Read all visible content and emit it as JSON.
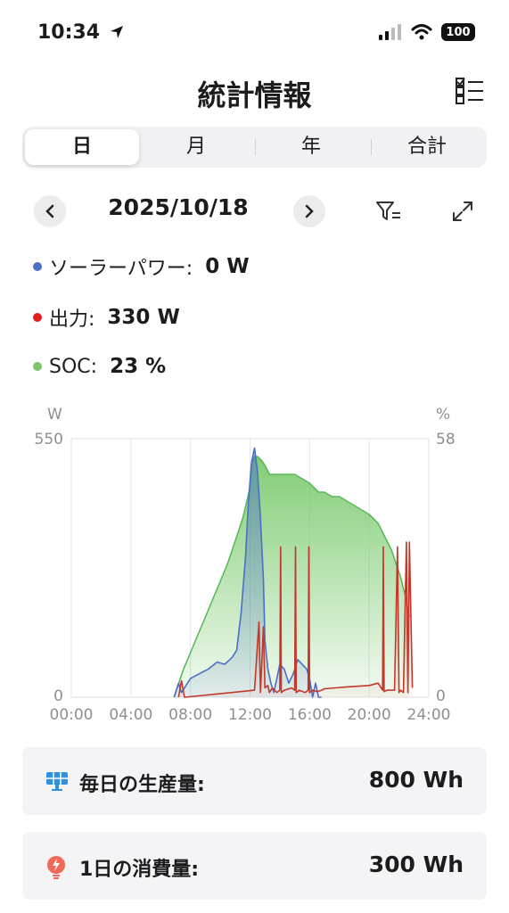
{
  "status": {
    "time": "10:34",
    "battery": "100"
  },
  "header": {
    "title": "統計情報"
  },
  "tabs": [
    {
      "label": "日",
      "active": true
    },
    {
      "label": "月",
      "active": false
    },
    {
      "label": "年",
      "active": false
    },
    {
      "label": "合計",
      "active": false
    }
  ],
  "date": "2025/10/18",
  "readouts": {
    "solar": {
      "label": "ソーラーパワー:",
      "value": "0 W",
      "color": "#4a6fc4"
    },
    "output": {
      "label": "出力:",
      "value": "330 W",
      "color": "#e02020"
    },
    "soc": {
      "label": "SOC:",
      "value": "23 %",
      "color": "#7cc46a"
    }
  },
  "chart_data": {
    "type": "area",
    "left_unit": "W",
    "right_unit": "%",
    "y_left": {
      "min": 0,
      "max": 550,
      "tick_labels": [
        "550",
        "0"
      ]
    },
    "y_right": {
      "min": 0,
      "max": 58,
      "tick_labels": [
        "58",
        "0"
      ]
    },
    "x_ticks": [
      "00:00",
      "04:00",
      "08:00",
      "12:00",
      "16:00",
      "20:00",
      "24:00"
    ],
    "grid": true,
    "series": [
      {
        "axis": "left",
        "color": "#4a6fc4",
        "x": [
          6.9,
          7.2,
          7.4,
          8.0,
          8.6,
          9.2,
          9.8,
          10.3,
          10.8,
          11.1,
          11.4,
          11.7,
          11.9,
          12.1,
          12.3,
          12.5,
          12.7,
          12.9,
          13.0,
          13.2,
          13.4,
          13.6,
          13.8,
          14.0,
          14.3,
          14.6,
          14.9,
          15.2,
          15.5,
          15.8,
          16.0,
          16.2,
          16.4,
          16.6,
          16.8
        ],
        "y": [
          0,
          30,
          10,
          40,
          50,
          60,
          75,
          70,
          85,
          100,
          180,
          300,
          420,
          500,
          530,
          480,
          380,
          250,
          120,
          60,
          30,
          10,
          40,
          70,
          60,
          30,
          50,
          80,
          70,
          60,
          40,
          0,
          30,
          0,
          0
        ]
      },
      {
        "axis": "left",
        "color": "#c0392b",
        "x": [
          7.2,
          7.4,
          7.6,
          12.3,
          12.6,
          12.7,
          12.9,
          13.0,
          13.2,
          13.3,
          13.5,
          13.8,
          14.0,
          14.05,
          14.1,
          14.3,
          14.8,
          15.0,
          15.05,
          15.1,
          15.3,
          15.7,
          15.9,
          15.95,
          16.0,
          16.2,
          16.5,
          16.8,
          17.0,
          18.5,
          20.0,
          20.6,
          20.9,
          20.95,
          21.0,
          21.2,
          21.7,
          21.9,
          22.0,
          22.1,
          22.3,
          22.5,
          22.6,
          22.7,
          22.9
        ],
        "y": [
          0,
          35,
          0,
          15,
          160,
          10,
          150,
          20,
          25,
          10,
          20,
          10,
          15,
          320,
          10,
          15,
          20,
          15,
          320,
          10,
          15,
          10,
          15,
          320,
          10,
          15,
          12,
          15,
          18,
          22,
          25,
          30,
          15,
          320,
          12,
          15,
          15,
          320,
          10,
          15,
          10,
          330,
          10,
          330,
          20
        ]
      },
      {
        "axis": "right",
        "color": "#5cb85c",
        "x": [
          6.9,
          7.5,
          8.0,
          8.5,
          9.0,
          9.5,
          10.0,
          10.5,
          11.0,
          11.5,
          12.0,
          12.1,
          12.3,
          12.5,
          12.8,
          13.0,
          13.3,
          13.6,
          14.0,
          14.5,
          15.0,
          15.5,
          16.0,
          16.3,
          16.6,
          17.0,
          17.5,
          18.0,
          18.5,
          19.0,
          19.5,
          20.0,
          20.3,
          20.6,
          20.9,
          21.2,
          21.5,
          21.8,
          22.1,
          22.4,
          22.7
        ],
        "y": [
          0,
          6,
          10,
          14,
          18,
          22,
          26,
          30,
          35,
          40,
          47,
          52,
          54,
          54,
          53,
          52,
          50,
          50,
          50,
          50,
          50,
          49,
          48,
          47,
          46,
          46,
          45,
          45,
          44,
          43,
          42,
          41,
          40,
          39,
          37,
          35,
          33,
          30,
          27,
          23,
          18
        ]
      }
    ]
  },
  "cards": {
    "production": {
      "label": "毎日の生産量:",
      "value": "800 Wh",
      "icon": "solar-panel-icon"
    },
    "consumption": {
      "label": "1日の消費量:",
      "value": "300 Wh",
      "icon": "lightning-icon"
    }
  }
}
